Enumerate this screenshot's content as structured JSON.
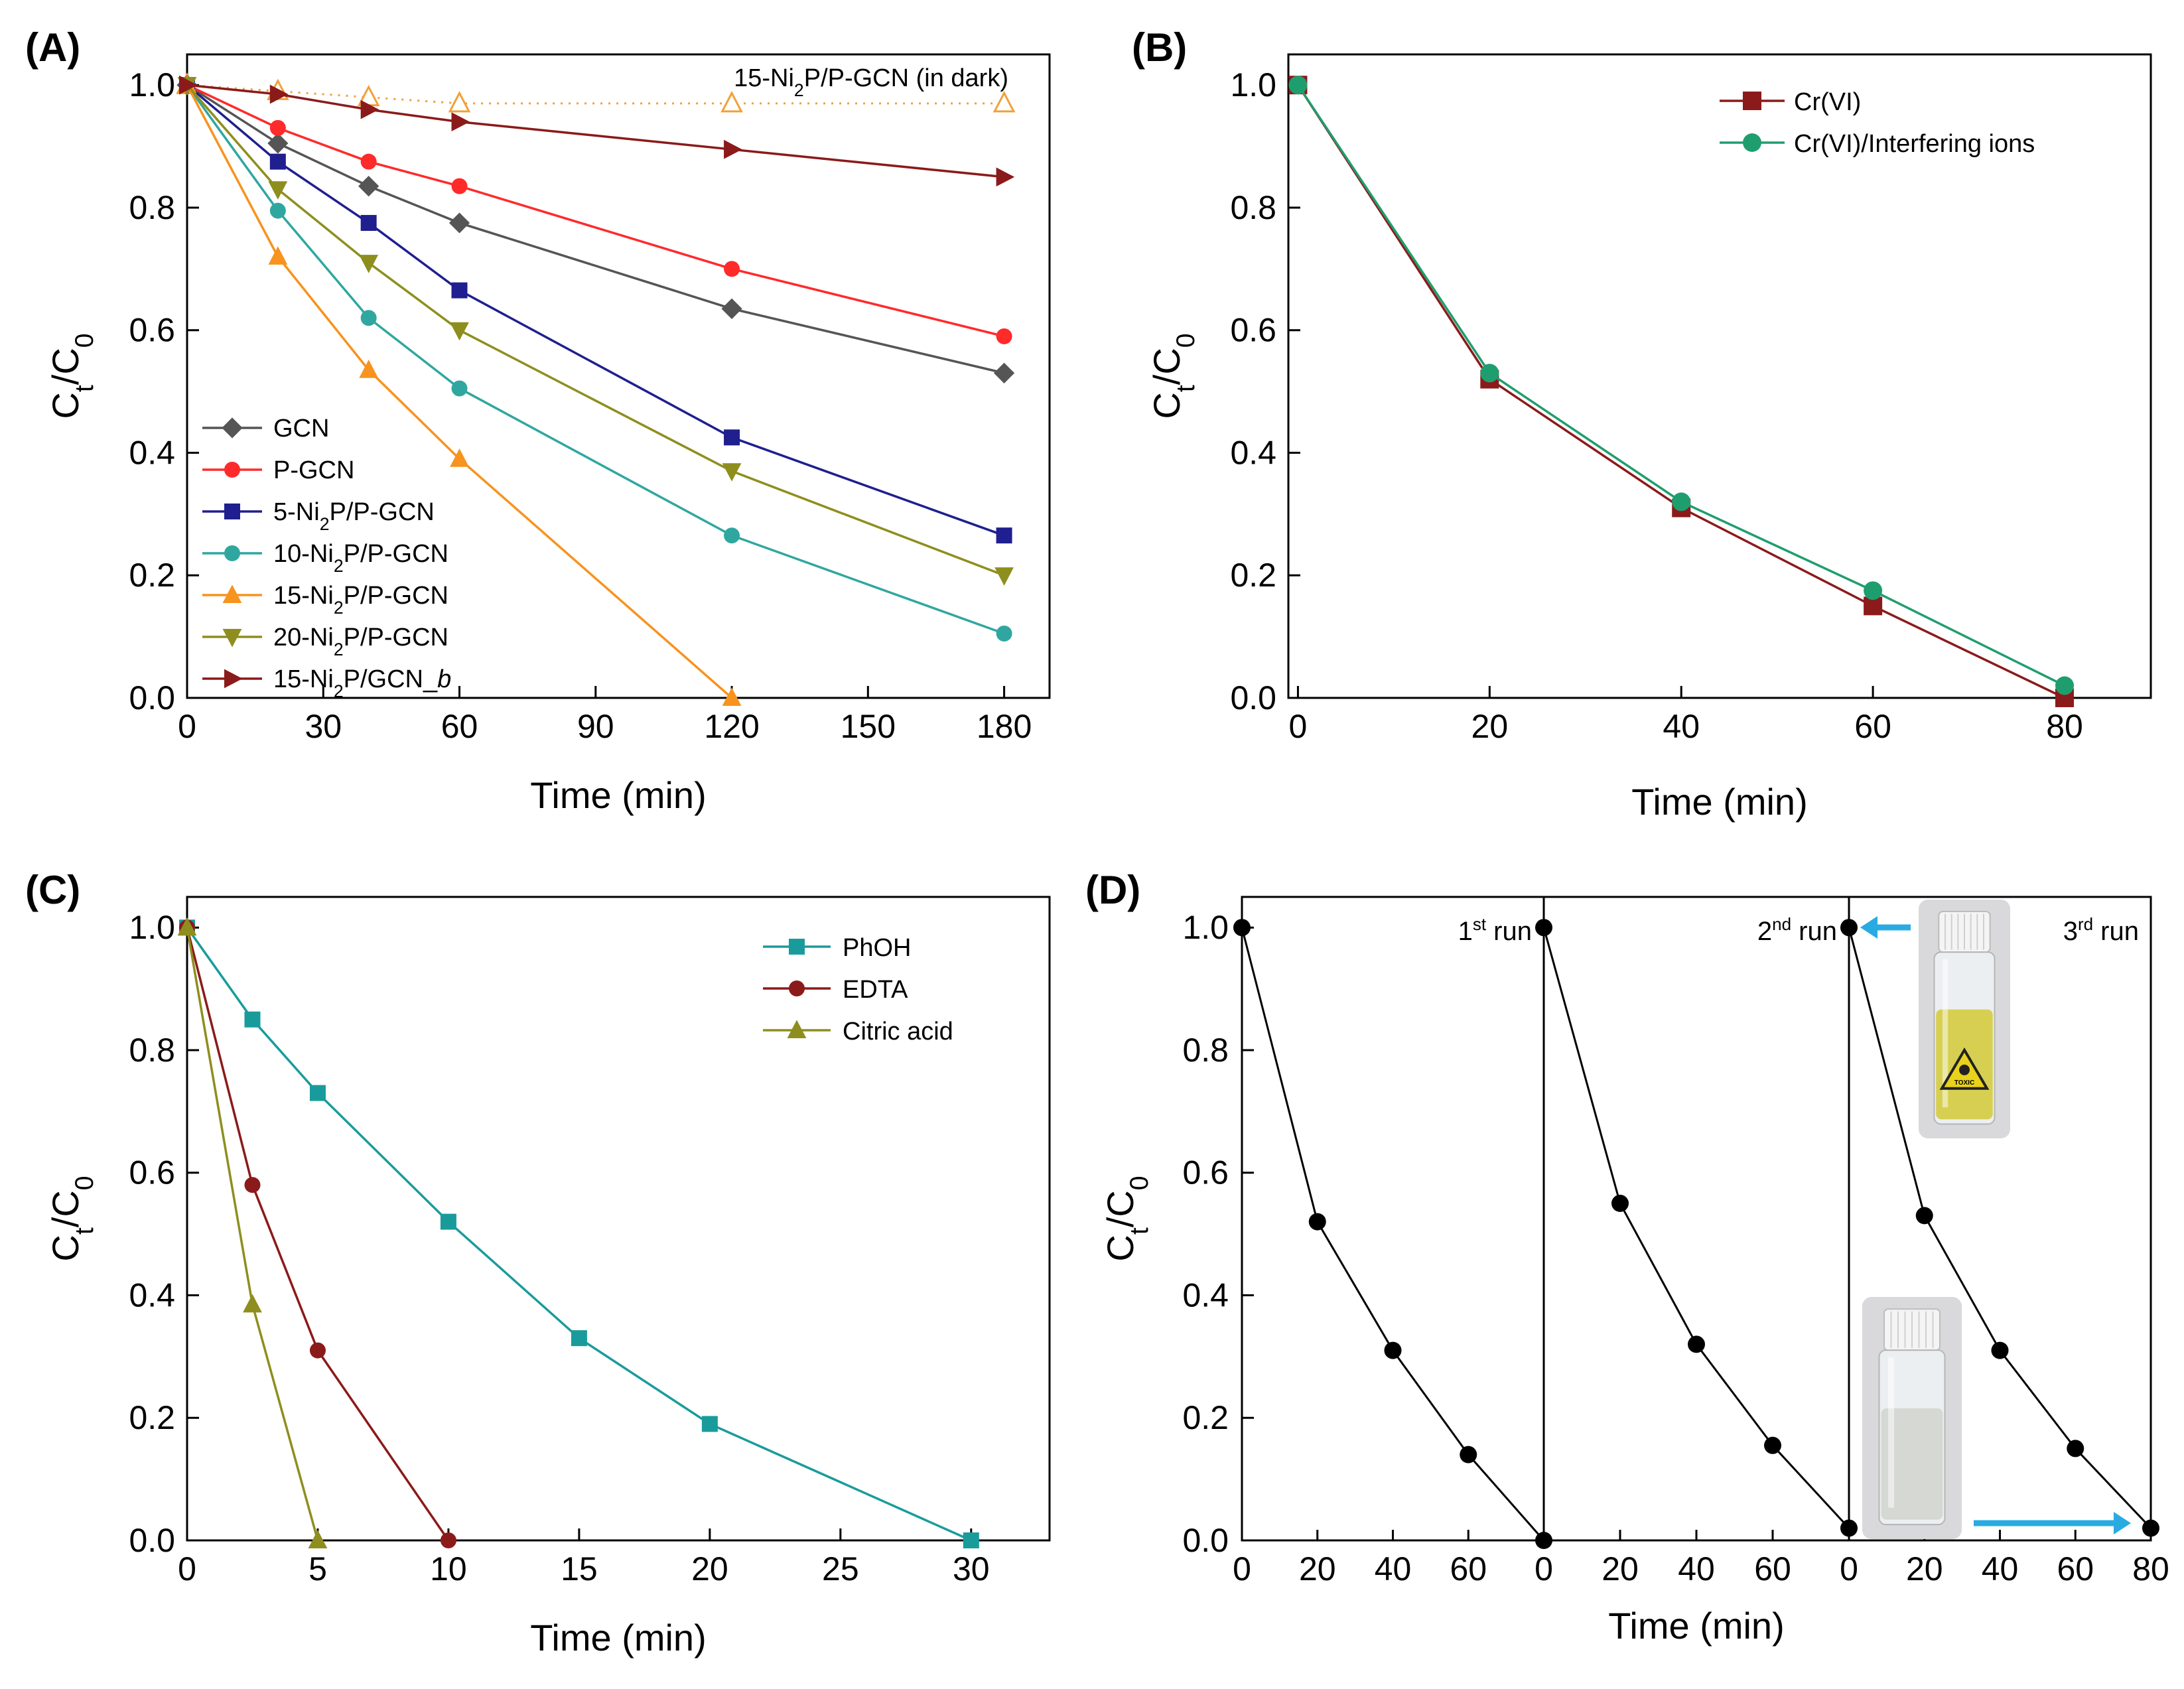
{
  "chart_data": [
    {
      "panel": "(A)",
      "type": "line",
      "xlabel": "Time (min)",
      "ylabel": "Ct/C0",
      "xlim": [
        0,
        190
      ],
      "ylim": [
        0,
        1.05
      ],
      "xticks": [
        0,
        30,
        60,
        90,
        120,
        150,
        180
      ],
      "yticks": [
        0.0,
        0.2,
        0.4,
        0.6,
        0.8,
        1.0
      ],
      "legend_position": "bottom-left",
      "annotation": "15-Ni2P/P-GCN (in dark)",
      "series": [
        {
          "name": "15-Ni2P/P-GCN (in dark)",
          "color": "#F2A03A",
          "marker": "triangle-open",
          "dashed": true,
          "in_legend": false,
          "x": [
            0,
            20,
            40,
            60,
            120,
            180
          ],
          "values": [
            1.0,
            0.99,
            0.98,
            0.97,
            0.97,
            0.97
          ]
        },
        {
          "name": "GCN",
          "color": "#555555",
          "marker": "diamond",
          "x": [
            0,
            20,
            40,
            60,
            120,
            180
          ],
          "values": [
            1.0,
            0.905,
            0.835,
            0.775,
            0.635,
            0.53
          ]
        },
        {
          "name": "P-GCN",
          "color": "#FF2A2A",
          "marker": "circle",
          "x": [
            0,
            20,
            40,
            60,
            120,
            180
          ],
          "values": [
            1.0,
            0.93,
            0.875,
            0.835,
            0.7,
            0.59
          ]
        },
        {
          "name": "5-Ni2P/P-GCN",
          "color": "#1F1F8F",
          "marker": "square",
          "x": [
            0,
            20,
            40,
            60,
            120,
            180
          ],
          "values": [
            1.0,
            0.875,
            0.775,
            0.665,
            0.425,
            0.265
          ]
        },
        {
          "name": "10-Ni2P/P-GCN",
          "color": "#2FA7A0",
          "marker": "circle",
          "x": [
            0,
            20,
            40,
            60,
            120,
            180
          ],
          "values": [
            1.0,
            0.795,
            0.62,
            0.505,
            0.265,
            0.105
          ]
        },
        {
          "name": "15-Ni2P/P-GCN",
          "color": "#F7931E",
          "marker": "triangle-up",
          "x": [
            0,
            20,
            40,
            60,
            120
          ],
          "values": [
            1.0,
            0.72,
            0.535,
            0.39,
            0.0
          ]
        },
        {
          "name": "20-Ni2P/P-GCN",
          "color": "#8E8E1E",
          "marker": "triangle-down",
          "x": [
            0,
            20,
            40,
            60,
            120,
            180
          ],
          "values": [
            1.0,
            0.83,
            0.71,
            0.6,
            0.37,
            0.2
          ]
        },
        {
          "name": "15-Ni2P/GCN_b",
          "color": "#8B1A1A",
          "marker": "triangle-right",
          "x": [
            0,
            20,
            40,
            60,
            120,
            180
          ],
          "values": [
            1.0,
            0.985,
            0.96,
            0.94,
            0.895,
            0.85
          ]
        }
      ]
    },
    {
      "panel": "(B)",
      "type": "line",
      "xlabel": "Time (min)",
      "ylabel": "Ct/C0",
      "xlim": [
        -1,
        89
      ],
      "ylim": [
        0,
        1.05
      ],
      "xticks": [
        0,
        20,
        40,
        60,
        80
      ],
      "yticks": [
        0.0,
        0.2,
        0.4,
        0.6,
        0.8,
        1.0
      ],
      "legend_position": "top-right",
      "series": [
        {
          "name": "Cr(VI)",
          "color": "#8B1A1A",
          "marker": "square",
          "x": [
            0,
            20,
            40,
            60,
            80
          ],
          "values": [
            1.0,
            0.52,
            0.31,
            0.15,
            0.0
          ]
        },
        {
          "name": "Cr(VI)/Interfering ions",
          "color": "#1E9E6E",
          "marker": "circle",
          "x": [
            0,
            20,
            40,
            60,
            80
          ],
          "values": [
            1.0,
            0.53,
            0.32,
            0.175,
            0.02
          ]
        }
      ]
    },
    {
      "panel": "(C)",
      "type": "line",
      "xlabel": "Time (min)",
      "ylabel": "Ct/C0",
      "xlim": [
        0,
        33
      ],
      "ylim": [
        0,
        1.05
      ],
      "xticks": [
        0,
        5,
        10,
        15,
        20,
        25,
        30
      ],
      "yticks": [
        0.0,
        0.2,
        0.4,
        0.6,
        0.8,
        1.0
      ],
      "legend_position": "top-right",
      "series": [
        {
          "name": "PhOH",
          "color": "#1A9B9B",
          "marker": "square",
          "x": [
            0,
            2.5,
            5,
            10,
            15,
            20,
            30
          ],
          "values": [
            1.0,
            0.85,
            0.73,
            0.52,
            0.33,
            0.19,
            0.0
          ]
        },
        {
          "name": "EDTA",
          "color": "#8B1A1A",
          "marker": "circle",
          "x": [
            0,
            2.5,
            5,
            10
          ],
          "values": [
            1.0,
            0.58,
            0.31,
            0.0
          ]
        },
        {
          "name": "Citric acid",
          "color": "#8E8E1E",
          "marker": "triangle-up",
          "x": [
            0,
            2.5,
            5
          ],
          "values": [
            1.0,
            0.385,
            0.0
          ]
        }
      ]
    },
    {
      "panel": "(D)",
      "type": "line",
      "xlabel": "Time (min)",
      "ylabel": "Ct/C0",
      "xlim": [
        0,
        80
      ],
      "ylim": [
        0,
        1.05
      ],
      "xticks": [
        0,
        20,
        40,
        60,
        80
      ],
      "yticks": [
        0.0,
        0.2,
        0.4,
        0.6,
        0.8,
        1.0
      ],
      "runs": [
        {
          "label_main": "1",
          "label_sup": "st",
          "label_end": " run",
          "x": [
            0,
            20,
            40,
            60,
            80
          ],
          "values": [
            1.0,
            0.52,
            0.31,
            0.14,
            0.0
          ]
        },
        {
          "label_main": "2",
          "label_sup": "nd",
          "label_end": " run",
          "x": [
            0,
            20,
            40,
            60,
            80
          ],
          "values": [
            1.0,
            0.55,
            0.32,
            0.155,
            0.02
          ]
        },
        {
          "label_main": "3",
          "label_sup": "rd",
          "label_end": " run",
          "x": [
            0,
            20,
            40,
            60,
            80
          ],
          "values": [
            1.0,
            0.53,
            0.31,
            0.15,
            0.02
          ]
        }
      ],
      "series_color": "#000000",
      "arrow_color": "#29ABE2",
      "inset_label": "TOXIC"
    }
  ]
}
